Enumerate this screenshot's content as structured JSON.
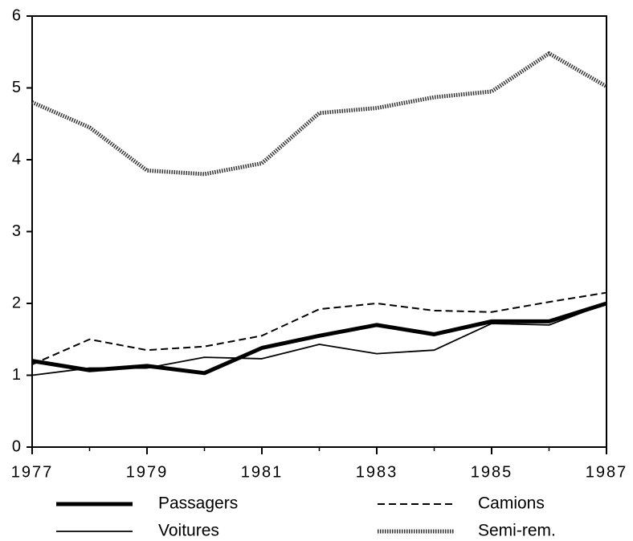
{
  "chart_data": {
    "type": "line",
    "x": [
      1977,
      1978,
      1979,
      1980,
      1981,
      1982,
      1983,
      1984,
      1985,
      1986,
      1987
    ],
    "series": [
      {
        "name": "Passagers",
        "color": "#000",
        "line_style": "thick",
        "values": [
          1.2,
          1.07,
          1.13,
          1.03,
          1.38,
          1.55,
          1.7,
          1.57,
          1.75,
          1.75,
          2.0
        ]
      },
      {
        "name": "Camions",
        "color": "#000",
        "line_style": "dashed",
        "values": [
          1.15,
          1.5,
          1.35,
          1.4,
          1.55,
          1.92,
          2.0,
          1.9,
          1.88,
          2.02,
          2.15
        ]
      },
      {
        "name": "Voitures",
        "color": "#000",
        "line_style": "thin",
        "values": [
          1.0,
          1.1,
          1.1,
          1.25,
          1.23,
          1.43,
          1.3,
          1.35,
          1.72,
          1.7,
          2.0
        ]
      },
      {
        "name": "Semi-rem.",
        "color": "#333",
        "line_style": "dotted",
        "values": [
          4.8,
          4.45,
          3.85,
          3.8,
          3.95,
          4.65,
          4.72,
          4.87,
          4.95,
          5.48,
          5.02
        ]
      }
    ],
    "xlim": [
      1977,
      1987
    ],
    "xticks": [
      1977,
      1979,
      1981,
      1983,
      1985,
      1987
    ],
    "ylim": [
      0,
      6
    ],
    "yticks": [
      0,
      1,
      2,
      3,
      4,
      5,
      6
    ]
  }
}
